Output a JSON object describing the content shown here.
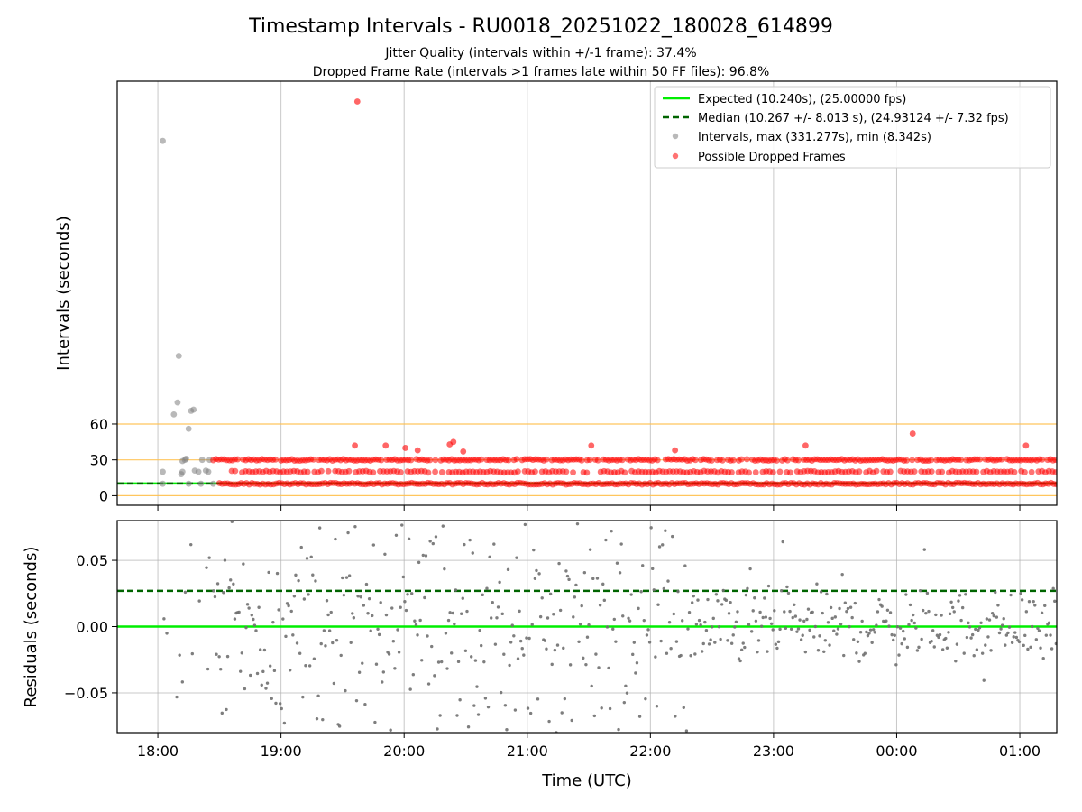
{
  "chart_data": {
    "type": "scatter",
    "title": "Timestamp Intervals - RU0018_20251022_180028_614899",
    "subtitle_lines": [
      "Jitter Quality (intervals within +/-1 frame): 37.4%",
      "Dropped Frame Rate (intervals >1 frames late within 50 FF files): 96.8%"
    ],
    "x_tick_labels": [
      "18:00",
      "19:00",
      "20:00",
      "21:00",
      "22:00",
      "23:00",
      "00:00",
      "01:00"
    ],
    "x_ticks_hours": [
      0,
      1,
      2,
      3,
      4,
      5,
      6,
      7
    ],
    "xlim_hours": [
      -0.33,
      7.3
    ],
    "xlabel": "Time (UTC)",
    "colors": {
      "expected": "#00ee00",
      "median": "#006400",
      "intervals": "#808080",
      "dropped": "#ff0000",
      "threshold": "#ffc04d"
    },
    "top": {
      "ylabel": "Intervals (seconds)",
      "y_tick_labels": [
        "0",
        "30",
        "60"
      ],
      "y_ticks": [
        0,
        30,
        60
      ],
      "ylim": [
        -8,
        347
      ],
      "expected_interval": 10.24,
      "median_interval": 10.267,
      "threshold_lines": [
        0,
        30,
        60
      ],
      "legend": [
        "Expected (10.240s), (25.00000 fps)",
        "Median (10.267 +/- 8.013 s), (24.93124 +/- 7.32 fps)",
        "Intervals, max (331.277s), min (8.342s)",
        "Possible Dropped Frames"
      ],
      "legend_position": "upper-right",
      "interval_points": [
        [
          0.04,
          297
        ],
        [
          0.04,
          20
        ],
        [
          0.04,
          10
        ],
        [
          0.13,
          68
        ],
        [
          0.16,
          78
        ],
        [
          0.17,
          117
        ],
        [
          0.19,
          18
        ],
        [
          0.2,
          20
        ],
        [
          0.2,
          29
        ],
        [
          0.22,
          30
        ],
        [
          0.23,
          31
        ],
        [
          0.25,
          56
        ],
        [
          0.27,
          71
        ],
        [
          0.29,
          72
        ],
        [
          0.25,
          10
        ],
        [
          0.3,
          21
        ],
        [
          0.33,
          20
        ],
        [
          0.36,
          30
        ],
        [
          0.39,
          21
        ],
        [
          0.41,
          20
        ],
        [
          0.42,
          30
        ],
        [
          0.35,
          10
        ],
        [
          0.45,
          10
        ]
      ],
      "dropped_points": [
        [
          1.62,
          330
        ],
        [
          1.6,
          42
        ],
        [
          1.85,
          42
        ],
        [
          2.01,
          40
        ],
        [
          2.11,
          38
        ],
        [
          2.37,
          43
        ],
        [
          2.4,
          45
        ],
        [
          2.48,
          37
        ],
        [
          3.52,
          42
        ],
        [
          4.2,
          38
        ],
        [
          5.26,
          42
        ],
        [
          6.13,
          52
        ],
        [
          7.05,
          42
        ]
      ],
      "dropped_bands": [
        {
          "value": 30,
          "x_range": [
            0.45,
            7.3
          ]
        },
        {
          "value": 20,
          "x_range": [
            0.6,
            7.3
          ]
        },
        {
          "value": 10,
          "x_range": [
            0.5,
            7.3
          ]
        }
      ]
    },
    "bottom": {
      "ylabel": "Residuals (seconds)",
      "y_tick_labels": [
        "−0.05",
        "0.00",
        "0.05"
      ],
      "y_ticks": [
        -0.05,
        0,
        0.05
      ],
      "ylim": [
        -0.08,
        0.08
      ],
      "expected_residual": 0,
      "median_residual": 0.027,
      "residual_spread_early": 0.08,
      "residual_spread_late": 0.025
    }
  }
}
